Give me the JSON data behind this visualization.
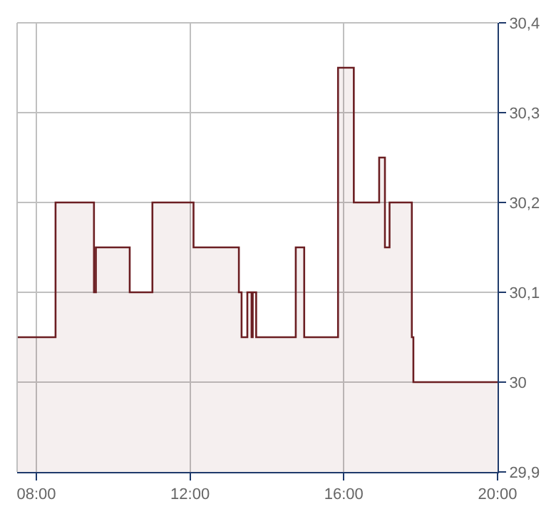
{
  "chart_data": {
    "type": "area",
    "x": [
      7.5,
      8.5,
      8.5,
      9.5,
      9.5,
      9.55,
      9.55,
      10.43,
      10.43,
      11.02,
      11.02,
      12.09,
      12.09,
      13.27,
      13.27,
      13.34,
      13.34,
      13.49,
      13.49,
      13.6,
      13.6,
      13.63,
      13.63,
      13.72,
      13.72,
      14.75,
      14.75,
      14.97,
      14.97,
      15.85,
      15.85,
      16.26,
      16.26,
      16.92,
      16.92,
      17.07,
      17.07,
      17.19,
      17.19,
      17.77,
      17.77,
      17.81,
      17.81,
      20.0
    ],
    "series": [
      {
        "color": "#6b1e22",
        "values": [
          30.05,
          30.05,
          30.2,
          30.2,
          30.1,
          30.1,
          30.15,
          30.15,
          30.1,
          30.1,
          30.2,
          30.2,
          30.15,
          30.15,
          30.1,
          30.1,
          30.05,
          30.05,
          30.1,
          30.1,
          30.05,
          30.05,
          30.1,
          30.1,
          30.05,
          30.05,
          30.15,
          30.15,
          30.05,
          30.05,
          30.35,
          30.35,
          30.2,
          30.2,
          30.25,
          30.25,
          30.15,
          30.15,
          30.2,
          30.2,
          30.05,
          30.05,
          30.0,
          30.0
        ]
      }
    ],
    "xlim": [
      7.5,
      20
    ],
    "xticks": [
      {
        "value": 8,
        "label": "08:00"
      },
      {
        "value": 12,
        "label": "12:00"
      },
      {
        "value": 16,
        "label": "16:00"
      },
      {
        "value": 20,
        "label": "20:00"
      }
    ],
    "ylim": [
      29.9,
      30.4
    ],
    "yticks": [
      {
        "value": 29.9,
        "label": "29,9"
      },
      {
        "value": 30.0,
        "label": "30"
      },
      {
        "value": 30.1,
        "label": "30,1"
      },
      {
        "value": 30.2,
        "label": "30,2"
      },
      {
        "value": 30.3,
        "label": "30,3"
      },
      {
        "value": 30.4,
        "label": "30,4"
      }
    ],
    "grid": true,
    "legend": false,
    "marker": "none",
    "line_style": "solid"
  }
}
